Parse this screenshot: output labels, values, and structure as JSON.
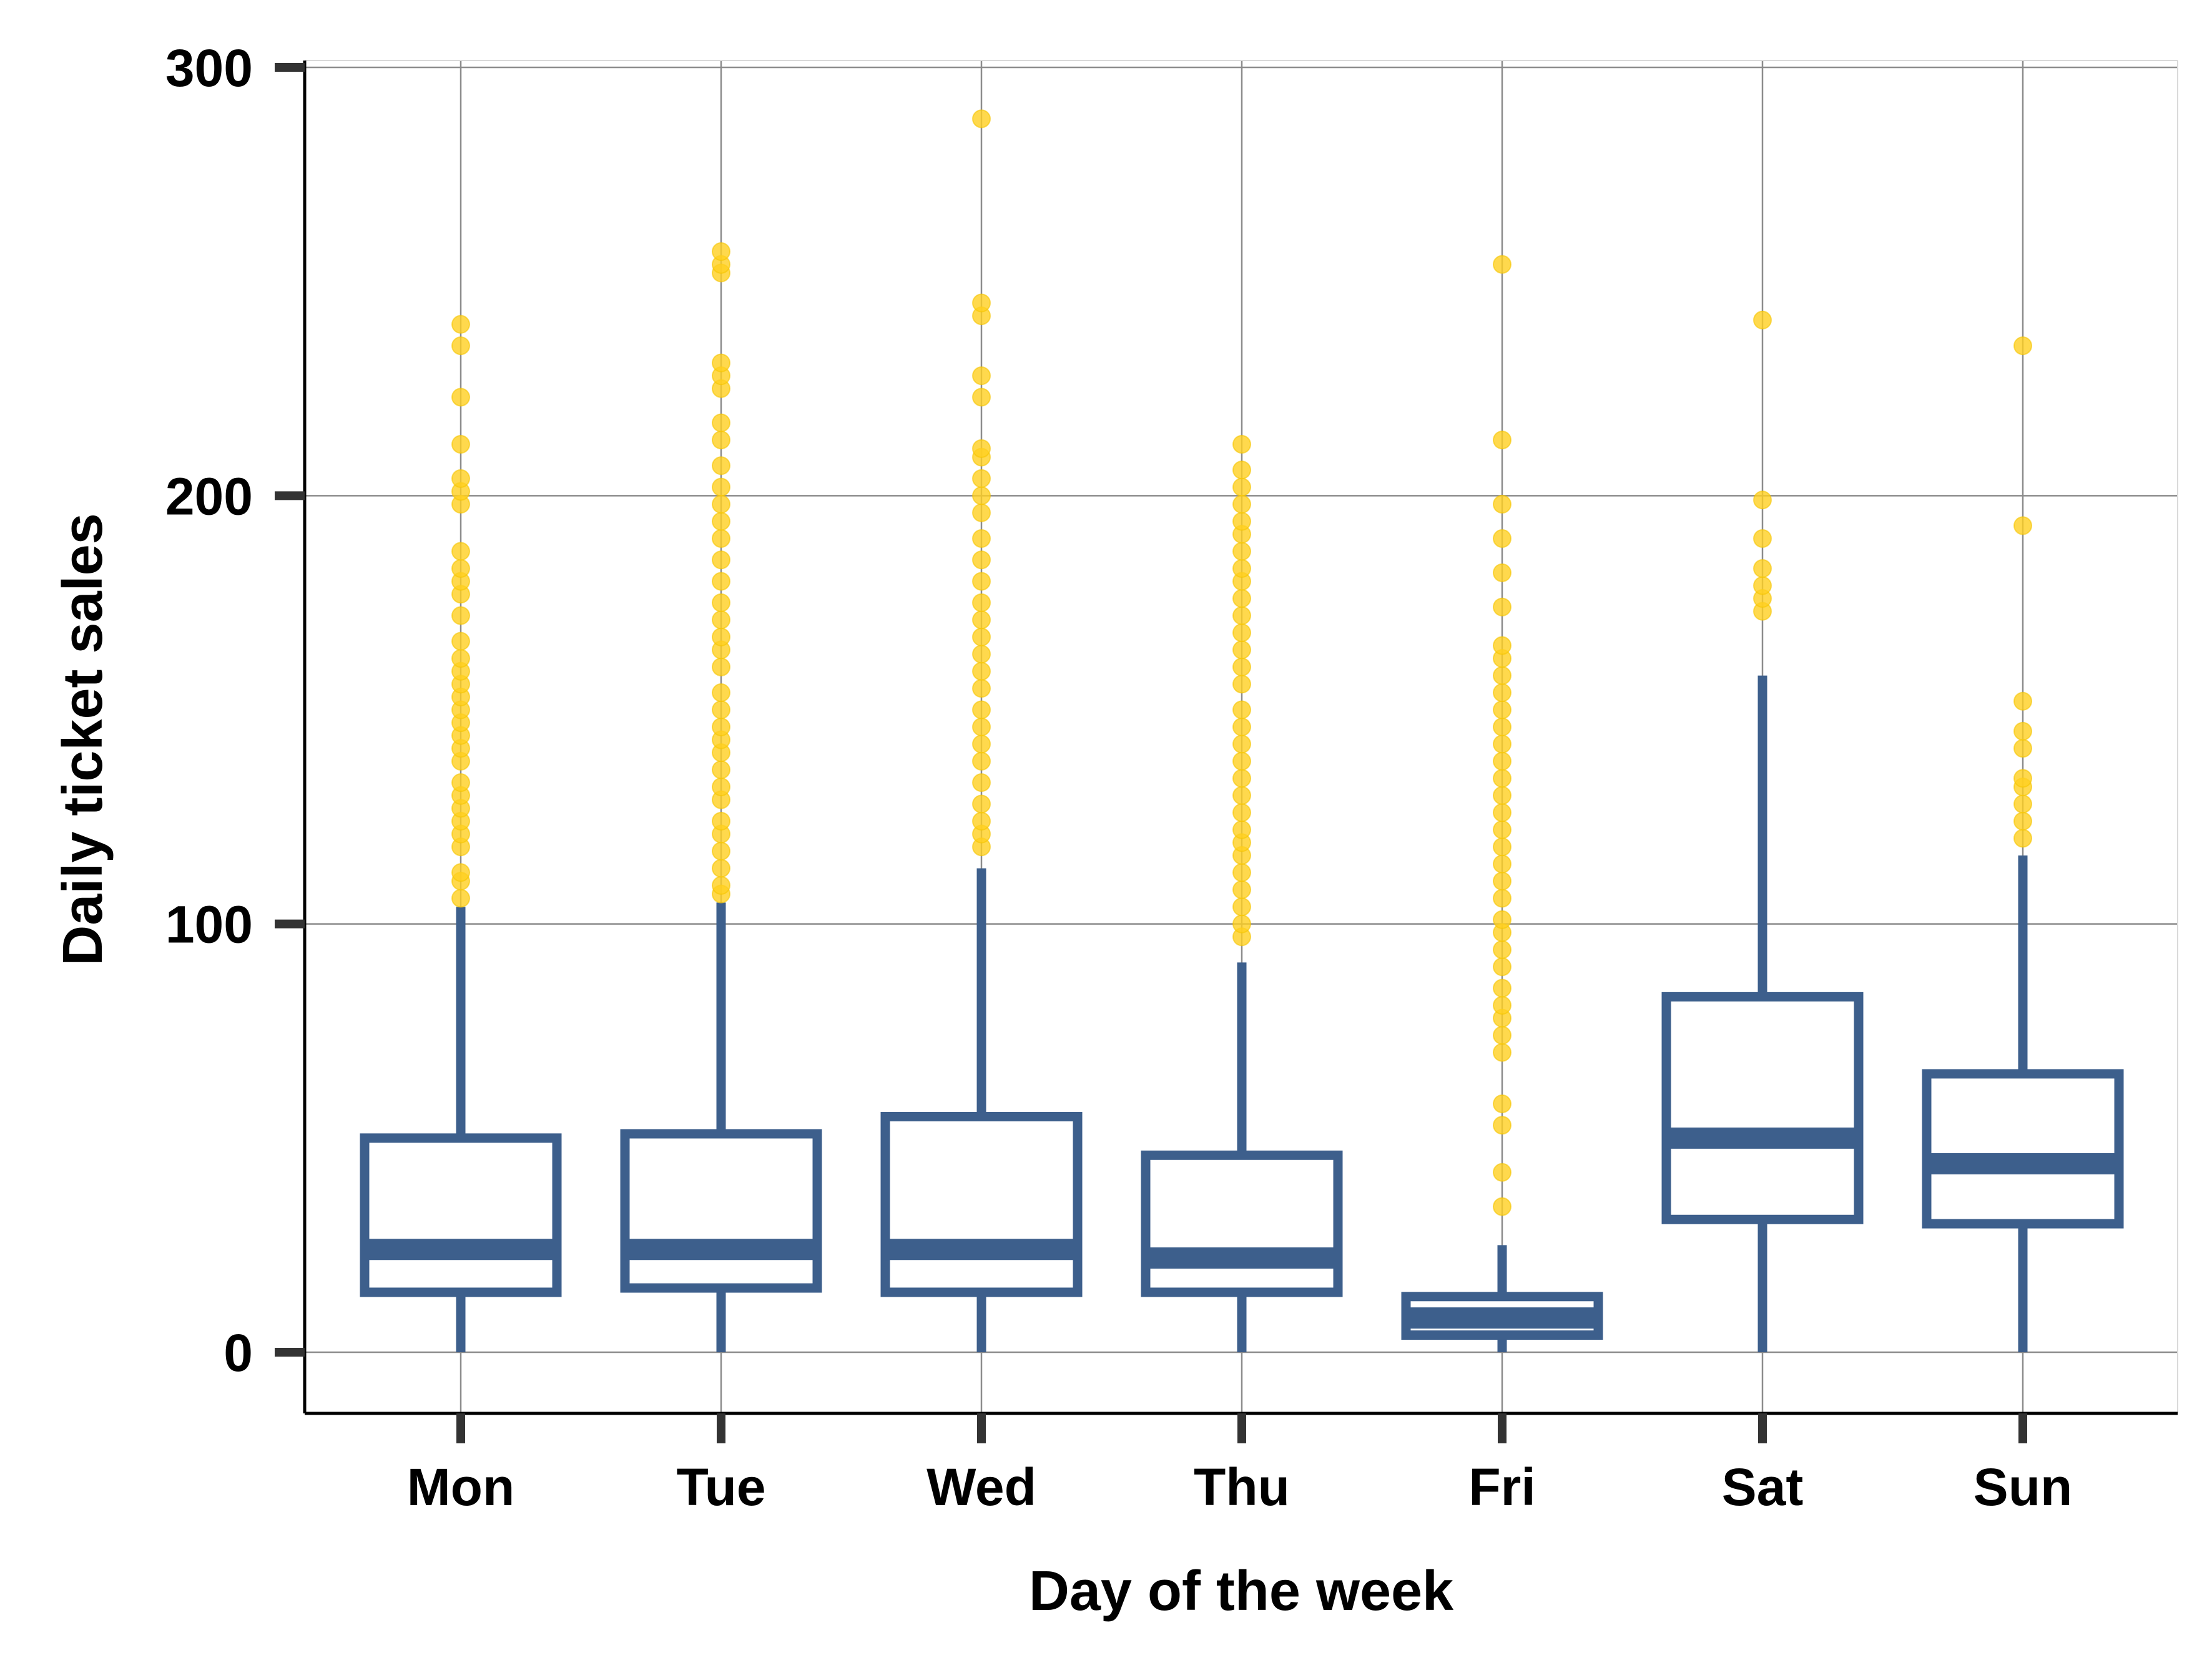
{
  "chart_data": {
    "type": "boxplot",
    "title": "",
    "xlabel": "Day of the week",
    "ylabel": "Daily ticket sales",
    "ylim": [
      -15,
      302
    ],
    "yticks": [
      0,
      100,
      200,
      300
    ],
    "grid": true,
    "legend": "none",
    "categories": [
      "Mon",
      "Tue",
      "Wed",
      "Thu",
      "Fri",
      "Sat",
      "Sun"
    ],
    "colors": {
      "box": "#3D5F8C",
      "outlier": "#FFD020",
      "grid": "#8C8C8C",
      "axis": "#000000",
      "tick": "#333333"
    },
    "boxes": [
      {
        "category": "Mon",
        "whisker_low": 0,
        "q1": 14,
        "median": 24,
        "q3": 50,
        "whisker_high": 104,
        "outliers": [
          106,
          110,
          112,
          118,
          121,
          124,
          127,
          130,
          133,
          138,
          141,
          144,
          147,
          150,
          153,
          156,
          159,
          162,
          166,
          172,
          177,
          180,
          183,
          187,
          198,
          201,
          204,
          212,
          223,
          235,
          240
        ]
      },
      {
        "category": "Tue",
        "whisker_low": 0,
        "q1": 15,
        "median": 24,
        "q3": 51,
        "whisker_high": 105,
        "outliers": [
          107,
          109,
          113,
          117,
          121,
          124,
          129,
          132,
          136,
          140,
          143,
          146,
          150,
          154,
          160,
          164,
          167,
          171,
          175,
          180,
          185,
          190,
          194,
          198,
          202,
          207,
          213,
          217,
          225,
          228,
          231,
          252,
          254,
          257
        ]
      },
      {
        "category": "Wed",
        "whisker_low": 0,
        "q1": 14,
        "median": 24,
        "q3": 55,
        "whisker_high": 113,
        "outliers": [
          118,
          121,
          124,
          128,
          133,
          138,
          142,
          146,
          150,
          155,
          159,
          163,
          167,
          171,
          175,
          180,
          185,
          190,
          196,
          200,
          204,
          209,
          211,
          223,
          228,
          242,
          245,
          288
        ]
      },
      {
        "category": "Thu",
        "whisker_low": 0,
        "q1": 14,
        "median": 22,
        "q3": 46,
        "whisker_high": 91,
        "outliers": [
          97,
          100,
          104,
          108,
          112,
          116,
          119,
          122,
          126,
          130,
          134,
          138,
          142,
          146,
          150,
          156,
          160,
          164,
          168,
          172,
          176,
          180,
          183,
          187,
          191,
          194,
          198,
          202,
          206,
          212
        ]
      },
      {
        "category": "Fri",
        "whisker_low": 0,
        "q1": 4,
        "median": 8,
        "q3": 13,
        "whisker_high": 25,
        "outliers": [
          34,
          42,
          53,
          58,
          70,
          74,
          78,
          81,
          85,
          90,
          94,
          98,
          101,
          106,
          110,
          114,
          118,
          122,
          126,
          130,
          134,
          138,
          142,
          146,
          150,
          154,
          158,
          162,
          165,
          174,
          182,
          190,
          198,
          213,
          254
        ]
      },
      {
        "category": "Sat",
        "whisker_low": 0,
        "q1": 31,
        "median": 50,
        "q3": 83,
        "whisker_high": 158,
        "outliers": [
          173,
          176,
          179,
          183,
          190,
          199,
          241
        ]
      },
      {
        "category": "Sun",
        "whisker_low": 0,
        "q1": 30,
        "median": 44,
        "q3": 65,
        "whisker_high": 116,
        "outliers": [
          120,
          124,
          128,
          132,
          134,
          141,
          145,
          152,
          193,
          235
        ]
      }
    ]
  }
}
